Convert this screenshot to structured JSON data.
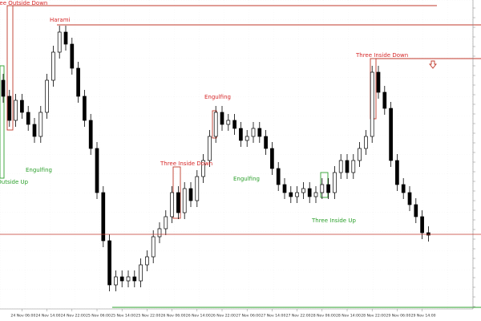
{
  "chart_data": {
    "type": "candlestick",
    "categories": [
      null,
      null,
      null,
      "24 Nov 06:00",
      null,
      null,
      null,
      "24 Nov 14:00",
      null,
      null,
      null,
      "24 Nov 22:00",
      null,
      null,
      null,
      "25 Nov 06:00",
      null,
      null,
      null,
      "25 Nov 14:00",
      null,
      null,
      null,
      "25 Nov 22:00",
      null,
      null,
      null,
      "26 Nov 06:00",
      null,
      null,
      null,
      "26 Nov 14:00",
      null,
      null,
      null,
      "26 Nov 22:00",
      null,
      null,
      null,
      "27 Nov 06:00",
      null,
      null,
      null,
      "27 Nov 14:00",
      null,
      null,
      null,
      "27 Nov 22:00",
      null,
      null,
      null,
      "28 Nov 06:00",
      null,
      null,
      null,
      "28 Nov 14:00",
      null,
      null,
      null,
      "28 Nov 22:00",
      null,
      null,
      null,
      "29 Nov 06:00",
      null,
      null,
      null,
      "29 Nov 14:00",
      null
    ],
    "open": [
      290,
      270,
      240,
      265,
      250,
      235,
      220,
      250,
      290,
      325,
      350,
      335,
      305,
      270,
      240,
      205,
      150,
      90,
      35,
      45,
      40,
      45,
      40,
      60,
      70,
      95,
      105,
      120,
      150,
      125,
      155,
      140,
      170,
      190,
      220,
      250,
      235,
      240,
      230,
      215,
      220,
      230,
      220,
      205,
      180,
      160,
      150,
      145,
      150,
      155,
      145,
      150,
      160,
      150,
      175,
      190,
      175,
      190,
      205,
      220,
      300,
      275,
      255,
      190,
      160,
      150,
      135,
      120,
      100
    ],
    "high": [
      298,
      278,
      273,
      273,
      258,
      243,
      258,
      298,
      333,
      358,
      358,
      343,
      313,
      278,
      248,
      213,
      158,
      98,
      53,
      53,
      53,
      53,
      68,
      78,
      103,
      113,
      128,
      158,
      158,
      163,
      163,
      178,
      198,
      228,
      258,
      258,
      248,
      248,
      238,
      228,
      238,
      238,
      228,
      213,
      188,
      168,
      158,
      158,
      163,
      163,
      158,
      168,
      168,
      183,
      198,
      198,
      198,
      213,
      228,
      308,
      308,
      283,
      263,
      198,
      168,
      158,
      143,
      128,
      108
    ],
    "low": [
      262,
      232,
      232,
      242,
      227,
      212,
      212,
      242,
      282,
      317,
      327,
      297,
      262,
      232,
      197,
      142,
      82,
      27,
      27,
      32,
      32,
      32,
      32,
      52,
      62,
      87,
      97,
      112,
      117,
      117,
      132,
      132,
      162,
      182,
      212,
      227,
      227,
      222,
      207,
      207,
      212,
      212,
      197,
      172,
      152,
      142,
      137,
      137,
      142,
      137,
      137,
      142,
      142,
      142,
      167,
      167,
      167,
      182,
      197,
      212,
      267,
      247,
      182,
      152,
      142,
      127,
      112,
      92,
      89
    ],
    "close": [
      270,
      240,
      265,
      250,
      235,
      220,
      250,
      290,
      325,
      350,
      335,
      305,
      270,
      240,
      205,
      150,
      90,
      35,
      45,
      40,
      45,
      40,
      60,
      70,
      95,
      105,
      120,
      150,
      125,
      155,
      140,
      170,
      190,
      220,
      250,
      235,
      240,
      230,
      215,
      220,
      230,
      220,
      205,
      180,
      160,
      150,
      145,
      150,
      155,
      145,
      150,
      160,
      150,
      175,
      190,
      175,
      190,
      205,
      220,
      300,
      275,
      255,
      190,
      160,
      150,
      135,
      120,
      100,
      97
    ],
    "ylim": [
      6,
      390
    ],
    "current_price": 98,
    "up_color": "#ffffff",
    "down_color": "#000000",
    "outline_color": "#000000",
    "price_line_color": "#c0392b",
    "grid": true,
    "annotations": [
      {
        "text": "Three Outside Down",
        "color": "#d62728"
      },
      {
        "text": "Harami",
        "color": "#d62728"
      },
      {
        "text": "Engulfing",
        "color": "#2ca02c"
      },
      {
        "text": "Three Outside Up",
        "color": "#2ca02c"
      },
      {
        "text": "Three Inside Down",
        "color": "#d62728"
      },
      {
        "text": "Engulfing",
        "color": "#d62728"
      },
      {
        "text": "Engulfing",
        "color": "#2ca02c"
      },
      {
        "text": "Three Inside Up",
        "color": "#2ca02c"
      },
      {
        "text": "Three Inside Down",
        "color": "#d62728"
      }
    ]
  }
}
